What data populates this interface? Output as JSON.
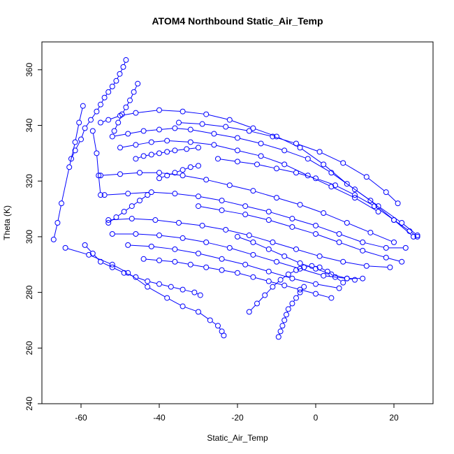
{
  "chart_data": {
    "type": "scatter",
    "title": "ATOM4 Northbound Static_Air_Temp",
    "xlabel": "Static_Air_Temp",
    "ylabel": "Theta (K)",
    "xlim": [
      -70,
      30
    ],
    "ylim": [
      240,
      370
    ],
    "x_ticks": [
      -60,
      -40,
      -20,
      0,
      20
    ],
    "y_ticks": [
      240,
      260,
      280,
      300,
      320,
      340,
      360
    ],
    "x_tick_labels": [
      "-60",
      "-40",
      "-20",
      "0",
      "20"
    ],
    "y_tick_labels": [
      "240",
      "260",
      "280",
      "300",
      "320",
      "340",
      "360"
    ],
    "grid": false,
    "legend": "none",
    "marker": "open-circle",
    "connect_points": true,
    "series_color": "#0000ff",
    "series": [
      {
        "x": [
          -48.5,
          -49.2,
          -50.1,
          -51.0,
          -52.0,
          -53.0,
          -54.0,
          -55.0,
          -56.0,
          -57.5,
          -59.0,
          -60.0,
          -61.5,
          -62.5
        ],
        "y": [
          363.5,
          361.0,
          358.5,
          356.0,
          354.0,
          352.0,
          350.0,
          347.5,
          345.0,
          342.0,
          339.0,
          335.0,
          331.0,
          328.0
        ]
      },
      {
        "x": [
          -45.5,
          -46.5,
          -47.5,
          -48.5,
          -49.5,
          -50.5,
          -51.5
        ],
        "y": [
          355.0,
          352.0,
          349.0,
          346.5,
          344.0,
          341.0,
          338.0
        ]
      },
      {
        "x": [
          -59.5,
          -60.5,
          -61.5,
          -63.0,
          -65.0,
          -66.0,
          -67.0
        ],
        "y": [
          347.0,
          341.0,
          334.0,
          325.0,
          312.0,
          305.0,
          299.0
        ]
      },
      {
        "x": [
          -55.0,
          -53.0,
          -50.0,
          -46.0,
          -40.0,
          -34.0,
          -28.0,
          -22.0,
          -16.0,
          -10.0,
          -4.0,
          2.0,
          8.0,
          14.0,
          20.0,
          25.0
        ],
        "y": [
          341.0,
          342.0,
          343.5,
          344.5,
          345.5,
          345.0,
          344.0,
          342.0,
          339.0,
          336.0,
          332.0,
          326.0,
          319.0,
          313.0,
          306.0,
          300.0
        ]
      },
      {
        "x": [
          -52.0,
          -48.0,
          -44.0,
          -40.0,
          -36.0,
          -32.0,
          -26.0,
          -20.0,
          -14.0,
          -8.0,
          -2.0,
          4.0,
          10.0,
          16.0,
          22.0,
          26.0
        ],
        "y": [
          336.0,
          337.0,
          338.0,
          338.5,
          339.0,
          338.5,
          337.0,
          335.5,
          333.5,
          331.0,
          328.0,
          323.0,
          317.0,
          311.0,
          305.0,
          300.5
        ]
      },
      {
        "x": [
          -50.0,
          -46.0,
          -42.0,
          -38.0,
          -32.0,
          -26.0,
          -20.0,
          -14.0,
          -8.0,
          -2.0,
          4.0,
          10.0,
          16.0
        ],
        "y": [
          332.0,
          333.0,
          334.0,
          334.5,
          334.0,
          333.0,
          331.0,
          329.0,
          326.0,
          322.0,
          318.0,
          314.0,
          309.0
        ]
      },
      {
        "x": [
          -46.0,
          -44.0,
          -42.0,
          -40.0,
          -38.0,
          -36.0,
          -33.0,
          -30.0
        ],
        "y": [
          328.0,
          329.0,
          329.5,
          330.0,
          330.5,
          331.0,
          331.5,
          332.0
        ]
      },
      {
        "x": [
          -40.0,
          -38.0,
          -36.0,
          -34.0,
          -32.0,
          -30.0
        ],
        "y": [
          321.0,
          322.0,
          323.0,
          324.0,
          325.0,
          325.5
        ]
      },
      {
        "x": [
          -55.0,
          -50.0,
          -45.0,
          -40.0,
          -34.0,
          -28.0,
          -22.0,
          -16.0,
          -10.0,
          -4.0,
          2.0,
          8.0,
          14.0,
          20.0
        ],
        "y": [
          322.0,
          322.5,
          323.0,
          323.0,
          322.0,
          320.5,
          318.5,
          316.5,
          314.0,
          311.5,
          308.5,
          305.0,
          301.5,
          298.0
        ]
      },
      {
        "x": [
          -54.0,
          -48.0,
          -42.0,
          -36.0,
          -30.0,
          -24.0,
          -18.0,
          -12.0,
          -6.0,
          0.0,
          6.0,
          12.0,
          18.0,
          23.0
        ],
        "y": [
          315.0,
          315.5,
          316.0,
          315.5,
          314.5,
          313.0,
          311.0,
          309.0,
          306.5,
          304.0,
          301.0,
          298.0,
          296.0,
          296.0
        ]
      },
      {
        "x": [
          -53.0,
          -47.0,
          -41.0,
          -35.0,
          -29.0,
          -23.0,
          -17.0,
          -11.0,
          -5.0,
          1.0,
          7.0,
          13.0,
          19.0
        ],
        "y": [
          306.0,
          306.5,
          306.0,
          305.0,
          304.0,
          302.5,
          300.5,
          298.0,
          295.5,
          293.0,
          291.0,
          289.5,
          289.0
        ]
      },
      {
        "x": [
          -52.0,
          -46.0,
          -40.0,
          -34.0,
          -28.0,
          -22.0,
          -16.0,
          -10.0,
          -4.0,
          2.0,
          8.0,
          12.0
        ],
        "y": [
          301.0,
          301.0,
          300.5,
          299.5,
          298.0,
          296.0,
          293.5,
          291.0,
          288.5,
          286.0,
          285.0,
          285.0
        ]
      },
      {
        "x": [
          -48.0,
          -42.0,
          -36.0,
          -30.0,
          -24.0,
          -18.0,
          -12.0,
          -6.0,
          0.0,
          6.0
        ],
        "y": [
          297.0,
          296.5,
          295.5,
          294.0,
          292.0,
          290.0,
          287.5,
          285.0,
          283.0,
          281.5
        ]
      },
      {
        "x": [
          -44.0,
          -40.0,
          -36.0,
          -32.0,
          -28.0,
          -24.0,
          -20.0,
          -16.0,
          -12.0,
          -8.0,
          -4.0,
          0.0,
          4.0
        ],
        "y": [
          292.0,
          291.5,
          291.0,
          290.0,
          289.0,
          288.0,
          287.0,
          285.5,
          284.0,
          282.5,
          281.0,
          279.5,
          278.0
        ]
      },
      {
        "x": [
          -59.0,
          -57.0,
          -55.0,
          -52.0,
          -49.0,
          -46.0,
          -43.0,
          -40.0,
          -37.0,
          -34.0,
          -31.0,
          -29.5
        ],
        "y": [
          297.0,
          294.0,
          291.0,
          289.0,
          287.0,
          285.5,
          284.0,
          283.0,
          282.0,
          281.0,
          280.0,
          279.0
        ]
      },
      {
        "x": [
          -64.0,
          -58.0,
          -52.0,
          -48.0,
          -43.0,
          -38.0,
          -34.0,
          -30.0,
          -27.0,
          -25.0,
          -24.0,
          -23.5
        ],
        "y": [
          296.0,
          293.5,
          290.0,
          287.0,
          282.0,
          278.0,
          275.0,
          273.0,
          270.0,
          268.0,
          266.0,
          264.5
        ]
      },
      {
        "x": [
          -57.0,
          -56.0,
          -55.5,
          -55.0
        ],
        "y": [
          338.0,
          330.0,
          322.0,
          315.0
        ]
      },
      {
        "x": [
          -53.0,
          -51.0,
          -49.0,
          -47.0,
          -45.0,
          -43.0
        ],
        "y": [
          305.0,
          307.0,
          309.0,
          311.0,
          313.0,
          315.0
        ]
      },
      {
        "x": [
          -9.5,
          -9.0,
          -8.5,
          -8.0,
          -7.5,
          -7.0,
          -6.0,
          -5.0,
          -4.0,
          -3.0
        ],
        "y": [
          264.0,
          266.0,
          268.0,
          270.0,
          272.0,
          274.0,
          276.0,
          278.0,
          280.0,
          282.0
        ]
      },
      {
        "x": [
          -17.0,
          -15.0,
          -13.0,
          -11.0,
          -9.0,
          -7.0,
          -5.0,
          -3.0,
          -1.0,
          1.0,
          3.0,
          5.0,
          7.0
        ],
        "y": [
          273.0,
          276.0,
          279.0,
          282.0,
          284.5,
          286.5,
          288.0,
          289.0,
          289.5,
          289.0,
          287.5,
          285.5,
          283.5
        ]
      },
      {
        "x": [
          -25.0,
          -20.0,
          -15.0,
          -10.0,
          -5.0,
          0.0,
          5.0,
          10.0,
          15.0,
          20.0,
          24.0,
          26.0
        ],
        "y": [
          328.0,
          327.0,
          326.0,
          324.5,
          323.0,
          321.0,
          318.5,
          315.0,
          311.0,
          306.0,
          302.0,
          300.0
        ]
      },
      {
        "x": [
          -30.0,
          -24.0,
          -18.0,
          -12.0,
          -6.0,
          0.0,
          6.0,
          12.0,
          18.0,
          22.0
        ],
        "y": [
          311.0,
          309.5,
          308.0,
          306.0,
          303.5,
          301.0,
          298.0,
          295.0,
          292.5,
          291.0
        ]
      },
      {
        "x": [
          -20.0,
          -16.0,
          -12.0,
          -8.0,
          -4.0,
          0.0,
          4.0,
          8.0,
          10.0
        ],
        "y": [
          300.0,
          298.0,
          295.5,
          293.0,
          290.5,
          288.5,
          286.5,
          285.0,
          284.5
        ]
      },
      {
        "x": [
          -35.0,
          -29.0,
          -23.0,
          -17.0,
          -11.0,
          -5.0,
          1.0,
          7.0,
          13.0,
          18.0,
          21.0
        ],
        "y": [
          341.0,
          340.5,
          339.5,
          338.0,
          336.0,
          333.5,
          330.5,
          326.5,
          321.5,
          316.0,
          312.0
        ]
      }
    ]
  }
}
